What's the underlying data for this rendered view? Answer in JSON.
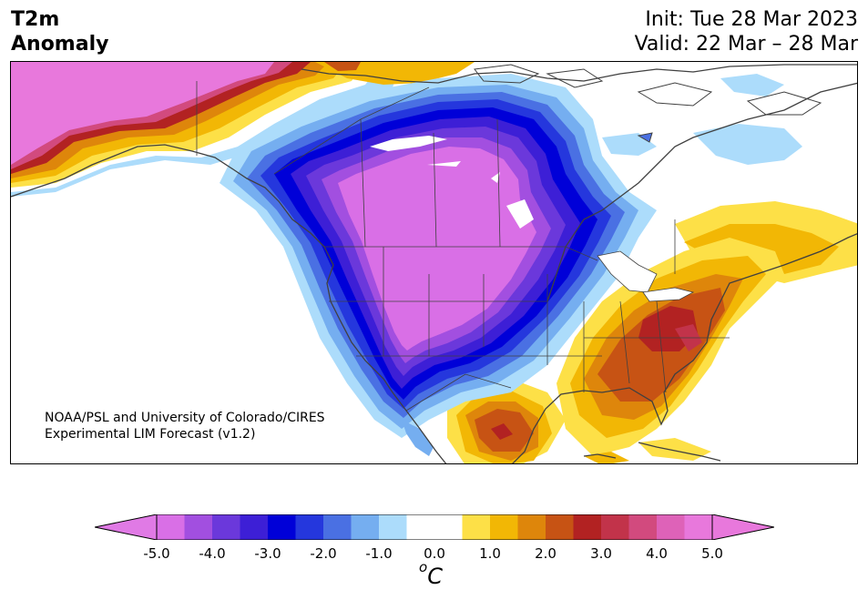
{
  "title": {
    "variable_line1": "T2m",
    "variable_line2": "Anomaly",
    "init": "Init: Tue 28 Mar 2023",
    "valid": "Valid: 22 Mar – 28 Mar"
  },
  "credit": {
    "line1": "NOAA/PSL and University of Colorado/CIRES",
    "line2": "Experimental LIM Forecast (v1.2)"
  },
  "colorbar": {
    "unit_sup": "o",
    "unit_base": "C",
    "min": -5.0,
    "max": 5.0,
    "extend": "both",
    "ticks": [
      "-5.0",
      "-4.0",
      "-3.0",
      "-2.0",
      "-1.0",
      "0.0",
      "1.0",
      "2.0",
      "3.0",
      "4.0",
      "5.0"
    ],
    "colors": [
      "#d96fe6",
      "#a24fe0",
      "#6b38db",
      "#3d1fd6",
      "#0000d8",
      "#2537dd",
      "#4a70e3",
      "#75aef0",
      "#acdcfb",
      "#ffffff",
      "#ffffff",
      "#fde047",
      "#f2b705",
      "#de860b",
      "#c75314",
      "#b22222",
      "#c2334a",
      "#d24a7e",
      "#de62b8",
      "#e878dc"
    ],
    "under_color": "#e07ae5",
    "over_color": "#e878dc"
  }
}
